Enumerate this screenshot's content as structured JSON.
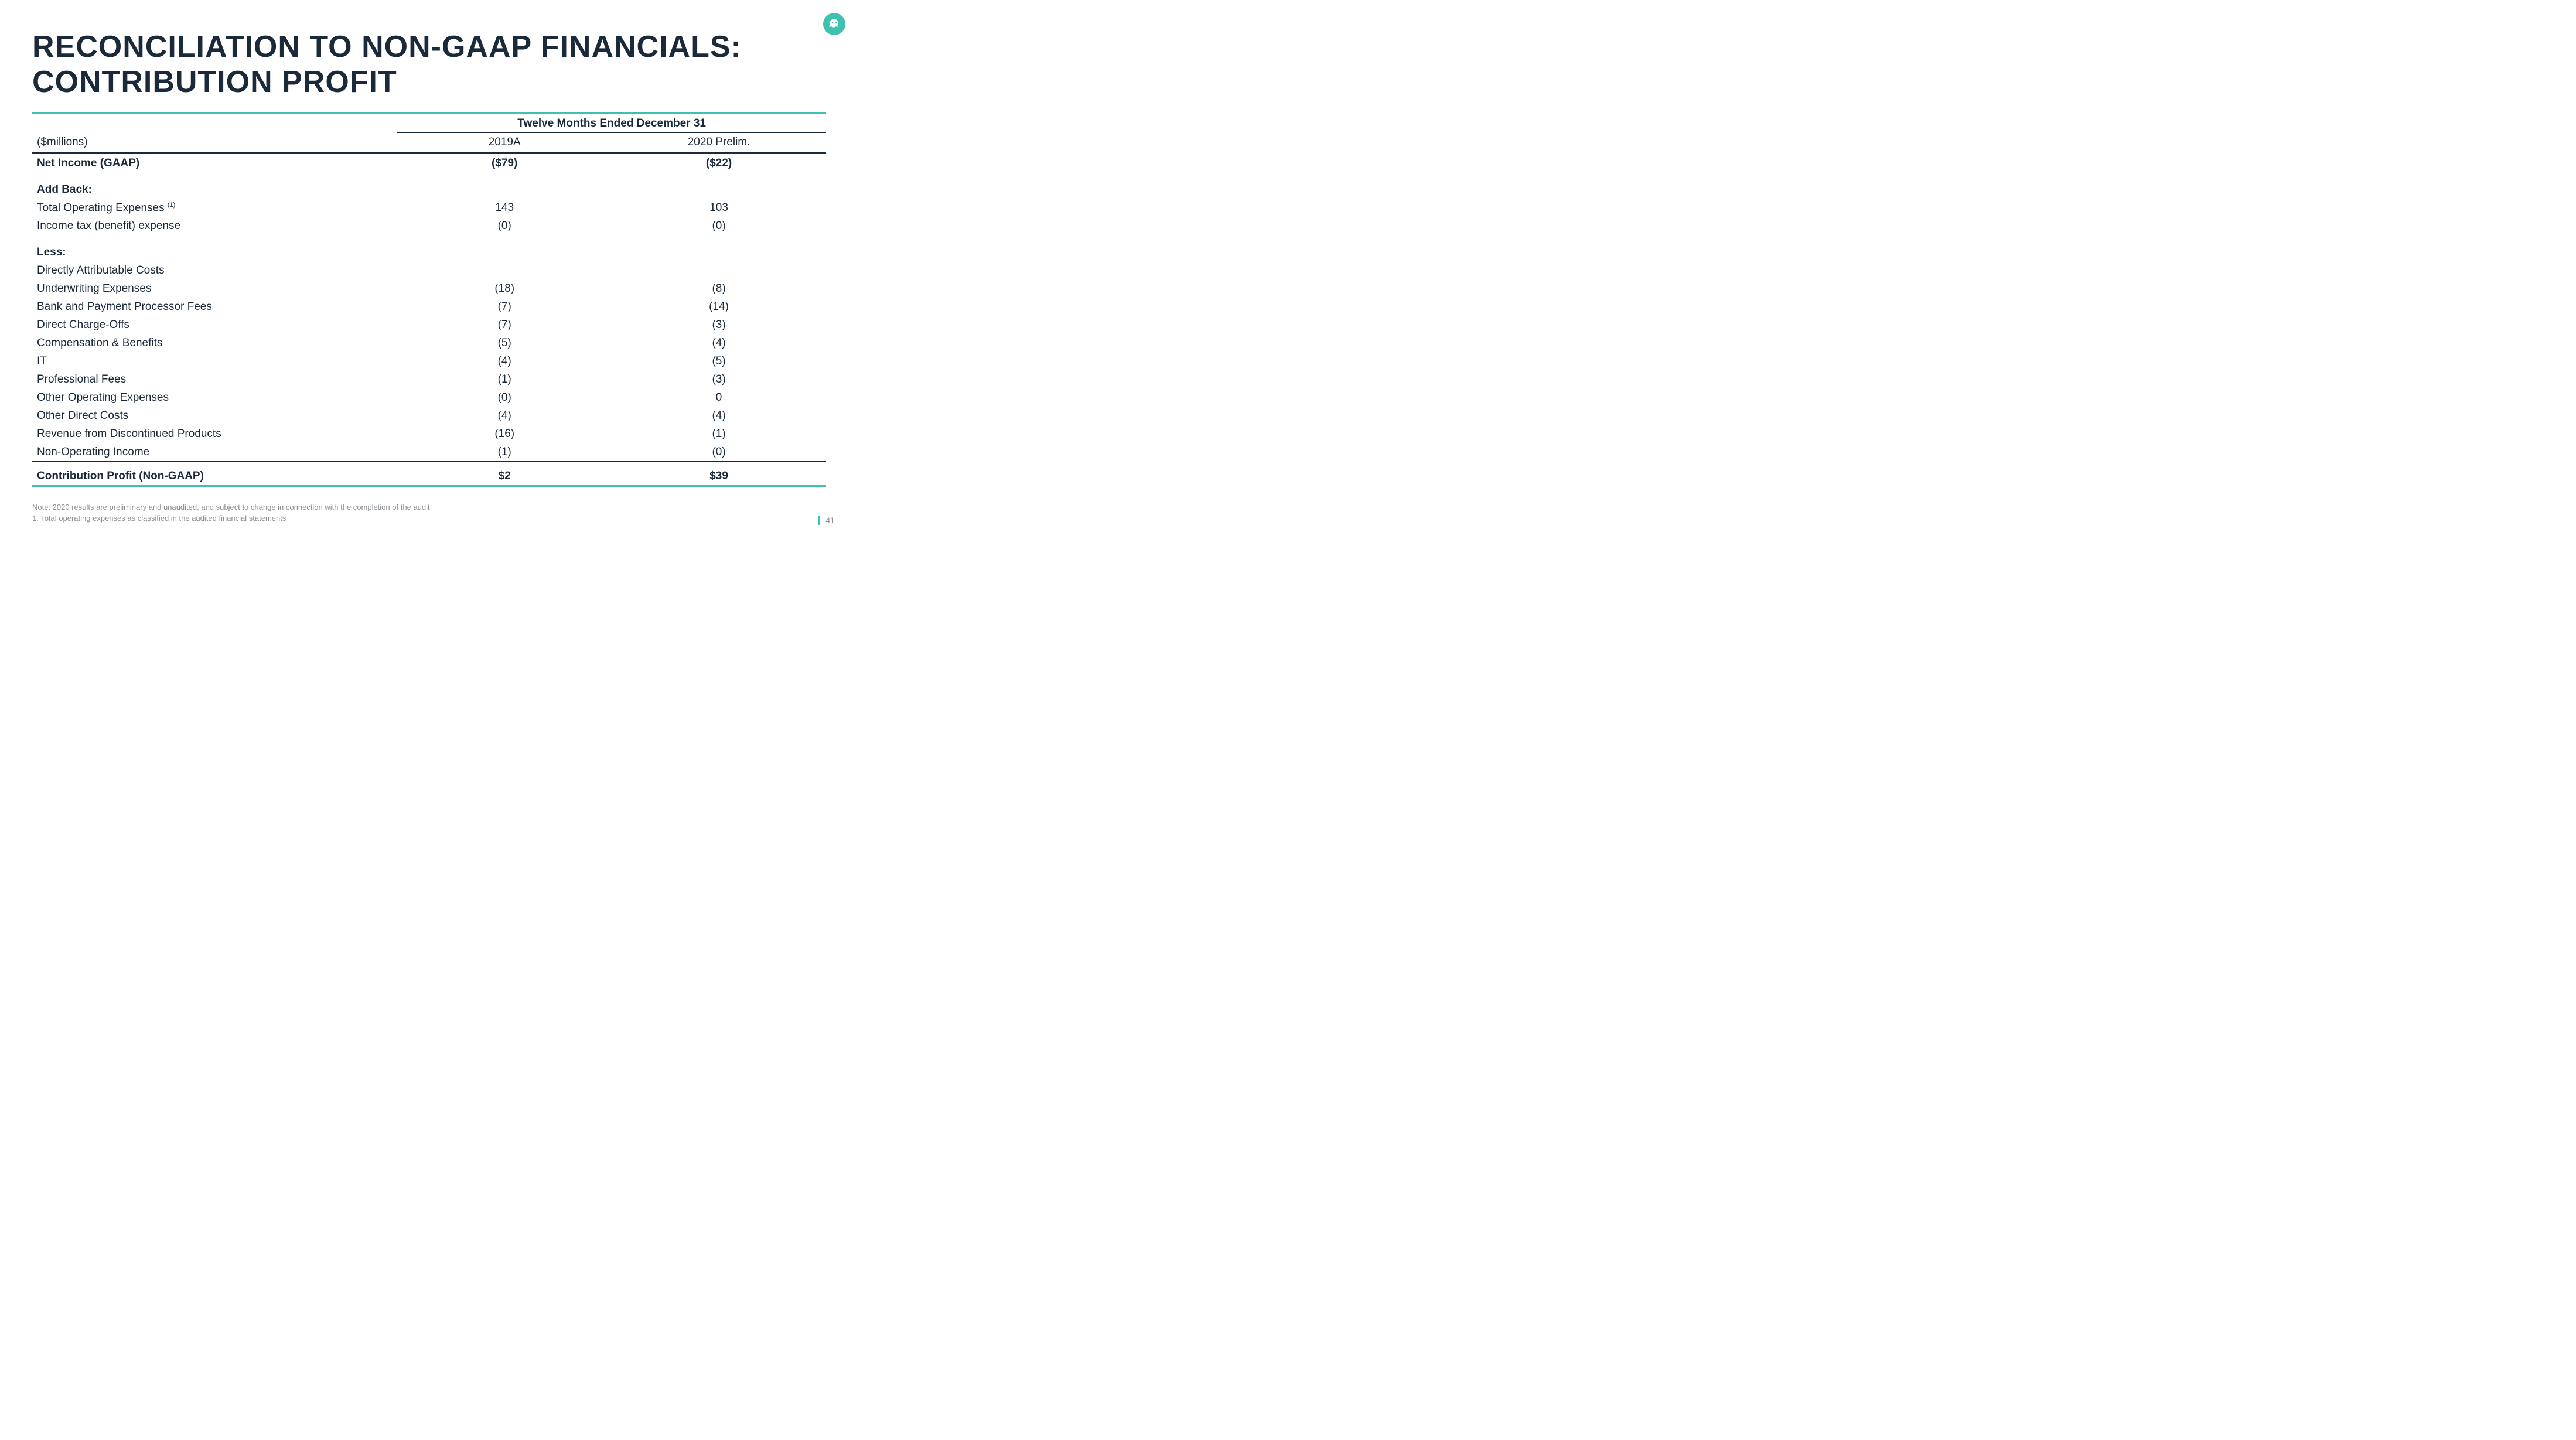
{
  "page": {
    "title": "RECONCILIATION TO NON-GAAP FINANCIALS: CONTRIBUTION PROFIT",
    "number": "41"
  },
  "logo": {
    "name": "moneylion-icon",
    "bg_color": "#3ec1b0"
  },
  "table": {
    "span_header": "Twelve Months Ended December 31",
    "unit_label": "($millions)",
    "col1_label": "2019A",
    "col2_label": "2020 Prelim.",
    "rows": [
      {
        "label": "Net Income (GAAP)",
        "v1": "($79)",
        "v2": "($22)",
        "bold": true,
        "indent": 0
      },
      {
        "gap": true
      },
      {
        "label": "Add Back:",
        "bold": true,
        "indent": 0
      },
      {
        "label": "Total Operating Expenses ",
        "sup": "(1)",
        "v1": "143",
        "v2": "103",
        "indent": 1
      },
      {
        "label": "Income tax (benefit) expense",
        "v1": "(0)",
        "v2": "(0)",
        "indent": 1
      },
      {
        "gap": true
      },
      {
        "label": "Less:",
        "bold": true,
        "indent": 0
      },
      {
        "label": "Directly Attributable Costs",
        "indent": 1
      },
      {
        "label": "Underwriting Expenses",
        "v1": "(18)",
        "v2": "(8)",
        "indent": 2
      },
      {
        "label": "Bank and Payment Processor Fees",
        "v1": "(7)",
        "v2": "(14)",
        "indent": 2
      },
      {
        "label": "Direct Charge-Offs",
        "v1": "(7)",
        "v2": "(3)",
        "indent": 2
      },
      {
        "label": "Compensation & Benefits",
        "v1": "(5)",
        "v2": "(4)",
        "indent": 2
      },
      {
        "label": "IT",
        "v1": "(4)",
        "v2": "(5)",
        "indent": 2
      },
      {
        "label": "Professional Fees",
        "v1": "(1)",
        "v2": "(3)",
        "indent": 2
      },
      {
        "label": "Other Operating Expenses",
        "v1": "(0)",
        "v2": "0",
        "indent": 2
      },
      {
        "label": "Other Direct Costs",
        "v1": "(4)",
        "v2": "(4)",
        "indent": 2
      },
      {
        "label": "Revenue from Discontinued Products",
        "v1": "(16)",
        "v2": "(1)",
        "indent": 1
      },
      {
        "label": "Non-Operating Income",
        "v1": "(1)",
        "v2": "(0)",
        "indent": 1
      },
      {
        "sep": true
      },
      {
        "label": "Contribution Profit (Non-GAAP)",
        "v1": "$2",
        "v2": "$39",
        "bold": true,
        "indent": 0
      }
    ]
  },
  "footnotes": {
    "note": "Note: 2020 results are preliminary and unaudited, and subject to change in connection with the completion of the audit",
    "item1": "1.   Total operating expenses as classified in the audited financial statements"
  },
  "style": {
    "title_fontsize": 52,
    "body_fontsize": 19,
    "footnote_fontsize": 13,
    "colors": {
      "dark": "#1a2a3a",
      "teal": "#3ec1b0",
      "grey": "#8a8f94",
      "background": "#ffffff"
    }
  }
}
